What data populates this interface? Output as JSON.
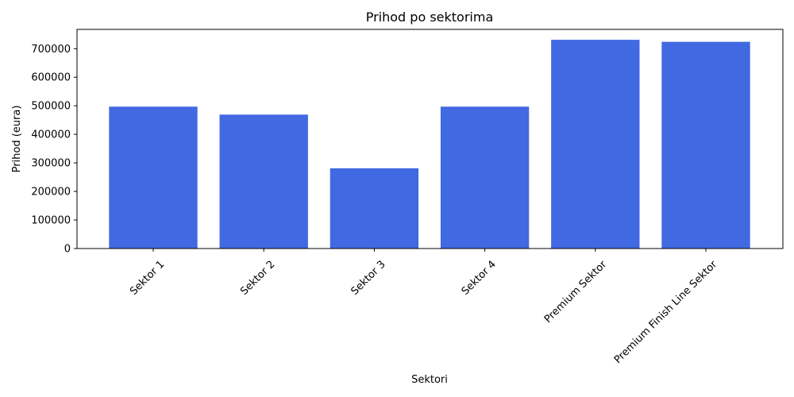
{
  "chart_data": {
    "type": "bar",
    "title": "Prihod po sektorima",
    "xlabel": "Sektori",
    "ylabel": "Prihod (eura)",
    "categories": [
      "Sektor 1",
      "Sektor 2",
      "Sektor 3",
      "Sektor 4",
      "Premium Sektor",
      "Premium Finish Line Sektor"
    ],
    "values": [
      497000,
      469000,
      281000,
      497000,
      731000,
      724000
    ],
    "ylim": [
      0,
      767550
    ],
    "yticks": [
      0,
      100000,
      200000,
      300000,
      400000,
      500000,
      600000,
      700000
    ],
    "ytick_labels": [
      "0",
      "100000",
      "200000",
      "300000",
      "400000",
      "500000",
      "600000",
      "700000"
    ],
    "bar_color": "#4169e1",
    "grid": false,
    "legend": "none"
  }
}
